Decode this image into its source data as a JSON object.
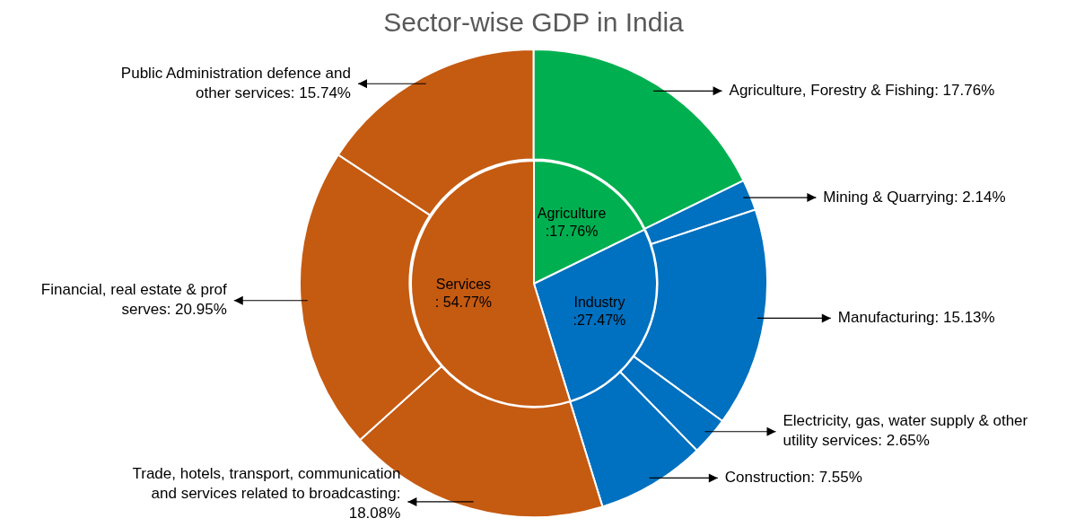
{
  "chart_data": [
    {
      "type": "donut",
      "title": "Sector-wise GDP in India",
      "categories": [
        "Agriculture, Forestry & Fishing",
        "Mining & Quarrying",
        "Manufacturing",
        "Electricity, gas, water supply & other utility services",
        "Construction",
        "Trade, hotels, transport, communication and services related to broadcasting",
        "Financial, real estate & prof serves",
        "Public Administration defence and other services"
      ],
      "values": [
        17.76,
        2.14,
        15.13,
        2.65,
        7.55,
        18.08,
        20.95,
        15.74
      ],
      "colors": [
        "#00b050",
        "#0070c0",
        "#0070c0",
        "#0070c0",
        "#0070c0",
        "#c55a11",
        "#c55a11",
        "#c55a11"
      ],
      "value_labels": [
        ": 17.76%",
        ": 2.14%",
        ": 15.13%",
        ": 2.65%",
        ": 7.55%",
        ": 18.08%",
        ": 20.95%",
        ": 15.74%"
      ]
    },
    {
      "type": "pie",
      "categories": [
        "Agriculture",
        "Industry",
        "Services"
      ],
      "values": [
        17.76,
        27.47,
        54.77
      ],
      "colors": [
        "#00b050",
        "#0070c0",
        "#c55a11"
      ],
      "value_labels": [
        ":17.76%",
        ":27.47%",
        ": 54.77%"
      ]
    }
  ]
}
